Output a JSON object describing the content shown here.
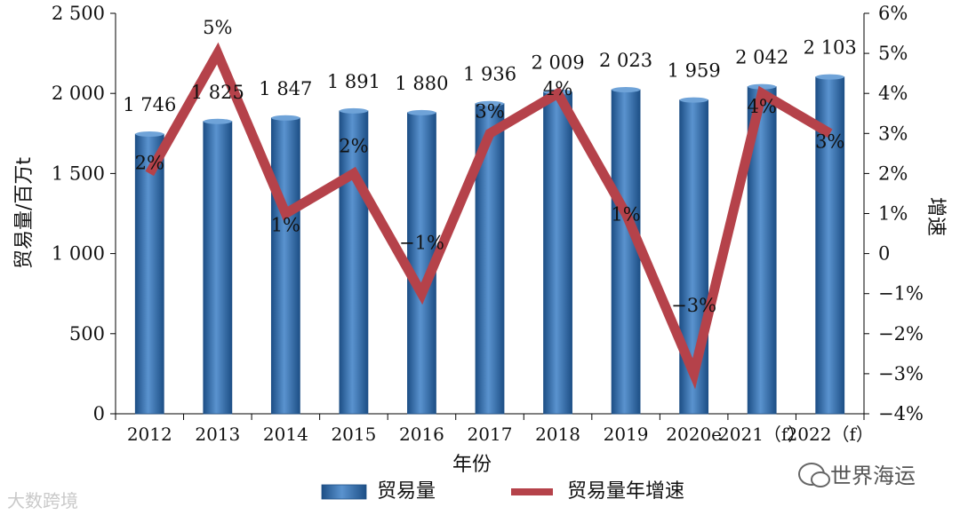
{
  "chart_data": {
    "type": "bar+line",
    "categories": [
      "2012",
      "2013",
      "2014",
      "2015",
      "2016",
      "2017",
      "2018",
      "2019",
      "2020e",
      "2021（f）",
      "2022（f）"
    ],
    "series": [
      {
        "name": "贸易量",
        "kind": "bar",
        "axis": "left",
        "values": [
          1746,
          1825,
          1847,
          1891,
          1880,
          1936,
          2009,
          2023,
          1959,
          2042,
          2103
        ],
        "value_labels": [
          "1 746",
          "1 825",
          "1 847",
          "1 891",
          "1 880",
          "1 936",
          "2 009",
          "2 023",
          "1 959",
          "2 042",
          "2 103"
        ]
      },
      {
        "name": "贸易量年增速",
        "kind": "line",
        "axis": "right",
        "values": [
          2,
          5,
          1,
          2,
          -1,
          3,
          4,
          1,
          -3,
          4,
          3
        ],
        "value_labels": [
          "2%",
          "5%",
          "1%",
          "2%",
          "−1%",
          "3%",
          "4%",
          "1%",
          "−3%",
          "4%",
          "3%"
        ]
      }
    ],
    "xlabel": "年份",
    "ylabel_left": "贸易量/百万t",
    "ylabel_right": "增速",
    "ylim_left": [
      0,
      2500
    ],
    "ylim_right": [
      -4,
      6
    ],
    "left_ticks": [
      0,
      500,
      1000,
      1500,
      2000,
      2500
    ],
    "left_tick_labels": [
      "0",
      "500",
      "1 000",
      "1 500",
      "2 000",
      "2 500"
    ],
    "right_ticks": [
      -4,
      -3,
      -2,
      -1,
      0,
      1,
      2,
      3,
      4,
      5,
      6
    ],
    "right_tick_labels": [
      "−4%",
      "−3%",
      "−2%",
      "−1%",
      "0",
      "1%",
      "2%",
      "3%",
      "4%",
      "5%",
      "6%"
    ],
    "legend": {
      "placement": "bottom",
      "items": [
        "贸易量",
        "贸易量年增速"
      ]
    },
    "colors": {
      "bar": "#2e69a8",
      "bar_light": "#5a93cf",
      "bar_dark": "#1d4f86",
      "line": "#b5424a"
    }
  },
  "watermarks": {
    "left": "大数跨境",
    "right": "世界海运"
  }
}
